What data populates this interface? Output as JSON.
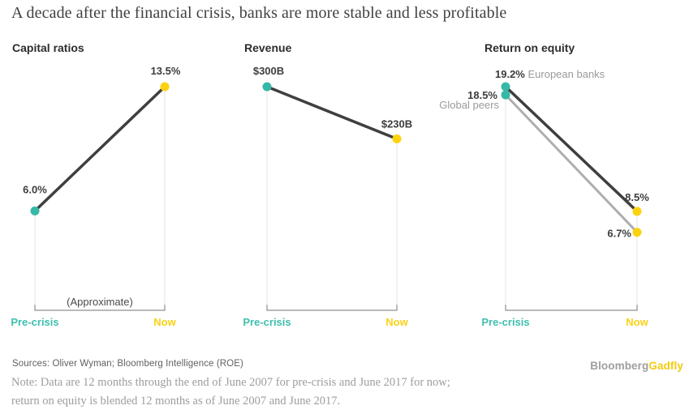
{
  "title": "A decade after the financial crisis, banks are more stable and less profitable",
  "colors": {
    "pre_dot": "#35b8a6",
    "now_dot": "#fcd20e",
    "line_dark": "#3f3f3f",
    "line_gray": "#aeaeae",
    "axis_pre": "#3fbfae",
    "axis_now": "#fbd116",
    "grid": "#e4e4e4",
    "bracket": "#8f8f8f"
  },
  "chart_data": [
    {
      "type": "line",
      "subtype": "slope",
      "title": "Capital ratios",
      "categories": [
        "Pre-crisis",
        "Now"
      ],
      "ylim": [
        0,
        13.5
      ],
      "grid": "vertical-stubs",
      "legend_position": "none",
      "annotation": "(Approximate)",
      "series": [
        {
          "name": "Capital ratios",
          "color": "dark",
          "values": [
            6.0,
            13.5
          ],
          "labels": [
            "6.0%",
            "13.5%"
          ]
        }
      ]
    },
    {
      "type": "line",
      "subtype": "slope",
      "title": "Revenue",
      "categories": [
        "Pre-crisis",
        "Now"
      ],
      "ylim": [
        0,
        300
      ],
      "grid": "vertical-stubs",
      "legend_position": "none",
      "annotation": "",
      "series": [
        {
          "name": "Revenue",
          "color": "dark",
          "values": [
            300,
            230
          ],
          "labels": [
            "$300B",
            "$230B"
          ]
        }
      ]
    },
    {
      "type": "line",
      "subtype": "slope",
      "title": "Return on equity",
      "categories": [
        "Pre-crisis",
        "Now"
      ],
      "ylim": [
        0,
        19.2
      ],
      "grid": "vertical-stubs",
      "legend_position": "inline-at-points",
      "annotation": "",
      "series": [
        {
          "name": "European banks",
          "color": "dark",
          "values": [
            19.2,
            8.5
          ],
          "labels": [
            "19.2%",
            "8.5%"
          ]
        },
        {
          "name": "Global peers",
          "color": "gray",
          "values": [
            18.5,
            6.7
          ],
          "labels": [
            "18.5%",
            "6.7%"
          ]
        }
      ]
    }
  ],
  "footer": {
    "sources": "Sources: Oliver Wyman; Bloomberg Intelligence (ROE)",
    "note_line1": "Note: Data are 12 months through the end of June 2007 for pre-crisis and June 2017 for now;",
    "note_line2": "return on equity is blended 12 months as of June 2007 and June 2017.",
    "logo_bloomberg": "Bloomberg",
    "logo_gadfly": "Gadfly"
  }
}
